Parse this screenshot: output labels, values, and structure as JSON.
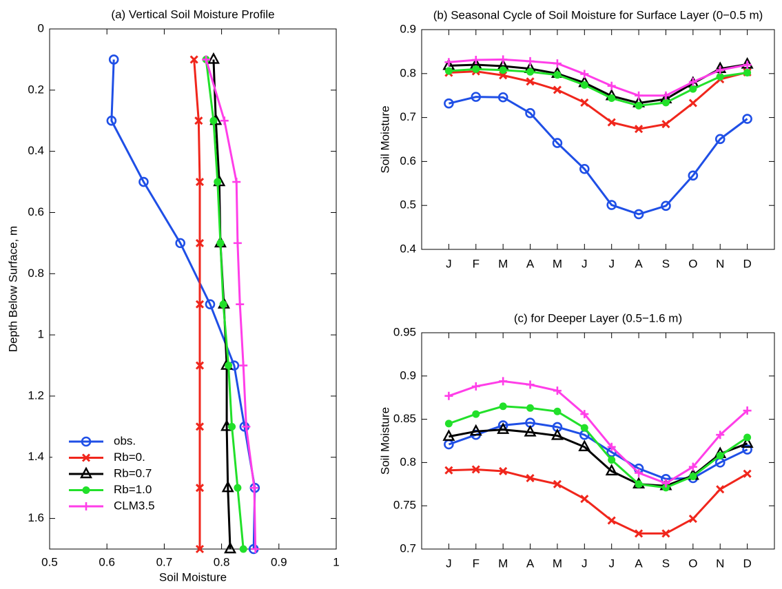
{
  "chart_data": [
    {
      "type": "profile",
      "title": "(a) Vertical Soil Moisture Profile",
      "xlabel": "Soil Moisture",
      "ylabel": "Depth Below Surface, m",
      "depths": [
        0.1,
        0.3,
        0.5,
        0.7,
        0.9,
        1.1,
        1.3,
        1.5,
        1.7
      ],
      "xlim": [
        0.5,
        1
      ],
      "xticks": [
        0.5,
        0.6,
        0.7,
        0.8,
        0.9,
        1
      ],
      "ylim": [
        0,
        1.7
      ],
      "yticks": [
        0,
        0.2,
        0.4,
        0.6,
        0.8,
        1,
        1.2,
        1.4,
        1.6
      ],
      "y_reversed": true,
      "legend": "lower left",
      "series": [
        {
          "name": "obs.",
          "color": "#1f4fe6",
          "marker": "circle",
          "values": [
            0.612,
            0.608,
            0.664,
            0.728,
            0.78,
            0.822,
            0.84,
            0.858,
            0.856
          ]
        },
        {
          "name": "Rb=0.",
          "color": "#f0261c",
          "marker": "x",
          "values": [
            0.752,
            0.76,
            0.762,
            0.762,
            0.762,
            0.762,
            0.762,
            0.762,
            0.762
          ]
        },
        {
          "name": "Rb=0.7",
          "color": "#000000",
          "marker": "triangle",
          "values": [
            0.786,
            0.79,
            0.796,
            0.798,
            0.804,
            0.809,
            0.809,
            0.811,
            0.815
          ]
        },
        {
          "name": "Rb=1.0",
          "color": "#22e02a",
          "marker": "dot",
          "values": [
            0.773,
            0.786,
            0.793,
            0.798,
            0.803,
            0.812,
            0.818,
            0.828,
            0.838
          ]
        },
        {
          "name": "CLM3.5",
          "color": "#ff3ee8",
          "marker": "plus",
          "values": [
            0.773,
            0.805,
            0.826,
            0.828,
            0.832,
            0.838,
            0.843,
            0.857,
            0.859
          ]
        }
      ]
    },
    {
      "type": "monthly",
      "title": "(b) Seasonal Cycle of Soil Moisture for Surface Layer (0−0.5 m)",
      "ylabel": "Soil Moisture",
      "categories": [
        "J",
        "F",
        "M",
        "A",
        "M",
        "J",
        "J",
        "A",
        "S",
        "O",
        "N",
        "D"
      ],
      "ylim": [
        0.4,
        0.9
      ],
      "yticks": [
        0.4,
        0.5,
        0.6,
        0.7,
        0.8,
        0.9
      ],
      "series": [
        {
          "color": "#1f4fe6",
          "marker": "circle",
          "values": [
            0.732,
            0.747,
            0.746,
            0.71,
            0.642,
            0.583,
            0.501,
            0.48,
            0.499,
            0.568,
            0.651,
            0.697
          ]
        },
        {
          "color": "#f0261c",
          "marker": "x",
          "values": [
            0.802,
            0.805,
            0.796,
            0.782,
            0.763,
            0.734,
            0.689,
            0.674,
            0.685,
            0.733,
            0.787,
            0.803
          ]
        },
        {
          "color": "#000000",
          "marker": "triangle",
          "values": [
            0.818,
            0.82,
            0.817,
            0.811,
            0.8,
            0.779,
            0.749,
            0.733,
            0.742,
            0.778,
            0.811,
            0.821
          ]
        },
        {
          "color": "#22e02a",
          "marker": "dot",
          "values": [
            0.806,
            0.81,
            0.808,
            0.804,
            0.797,
            0.774,
            0.744,
            0.727,
            0.734,
            0.765,
            0.793,
            0.802
          ]
        },
        {
          "color": "#ff3ee8",
          "marker": "plus",
          "values": [
            0.826,
            0.831,
            0.832,
            0.828,
            0.823,
            0.799,
            0.772,
            0.75,
            0.75,
            0.781,
            0.808,
            0.82
          ]
        }
      ]
    },
    {
      "type": "monthly",
      "title": "(c) for Deeper Layer (0.5−1.6 m)",
      "ylabel": "Soil Moisture",
      "categories": [
        "J",
        "F",
        "M",
        "A",
        "M",
        "J",
        "J",
        "A",
        "S",
        "O",
        "N",
        "D"
      ],
      "ylim": [
        0.7,
        0.95
      ],
      "yticks": [
        0.7,
        0.75,
        0.8,
        0.85,
        0.9,
        0.95
      ],
      "series": [
        {
          "color": "#1f4fe6",
          "marker": "circle",
          "values": [
            0.821,
            0.832,
            0.843,
            0.846,
            0.841,
            0.832,
            0.812,
            0.793,
            0.781,
            0.782,
            0.8,
            0.815
          ]
        },
        {
          "color": "#f0261c",
          "marker": "x",
          "values": [
            0.791,
            0.792,
            0.79,
            0.782,
            0.775,
            0.758,
            0.733,
            0.718,
            0.718,
            0.735,
            0.769,
            0.787
          ]
        },
        {
          "color": "#000000",
          "marker": "triangle",
          "values": [
            0.83,
            0.836,
            0.838,
            0.835,
            0.831,
            0.818,
            0.79,
            0.775,
            0.773,
            0.785,
            0.81,
            0.822
          ]
        },
        {
          "color": "#22e02a",
          "marker": "dot",
          "values": [
            0.845,
            0.856,
            0.865,
            0.863,
            0.859,
            0.84,
            0.803,
            0.775,
            0.771,
            0.784,
            0.808,
            0.829
          ]
        },
        {
          "color": "#ff3ee8",
          "marker": "plus",
          "values": [
            0.877,
            0.888,
            0.894,
            0.89,
            0.883,
            0.856,
            0.818,
            0.788,
            0.776,
            0.795,
            0.832,
            0.86
          ]
        }
      ]
    }
  ]
}
